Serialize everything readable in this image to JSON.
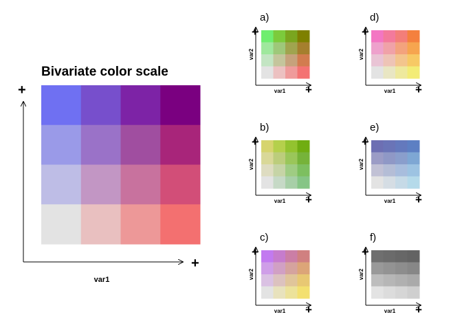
{
  "chart_data": {
    "type": "heatmap",
    "main": {
      "title": "Bivariate color scale",
      "xlabel": "var1",
      "ylabel": "",
      "x_end_marker": "+",
      "y_end_marker": "+",
      "grid": [
        [
          "#6f70f2",
          "#774fcc",
          "#7d23a6",
          "#7a0080"
        ],
        [
          "#9a9ae8",
          "#9a72c8",
          "#a04ea0",
          "#a8257a"
        ],
        [
          "#bebde6",
          "#c296c4",
          "#c8729e",
          "#d24e78"
        ],
        [
          "#e3e3e3",
          "#e9c0c0",
          "#ed9898",
          "#f37070"
        ]
      ]
    },
    "panels": [
      {
        "label": "a)",
        "xlabel": "var1",
        "ylabel": "var2",
        "x_end_marker": "+",
        "y_end_marker": "+",
        "grid": [
          [
            "#6fee6f",
            "#7ccb3c",
            "#7aa61f",
            "#7e8000"
          ],
          [
            "#9fe89d",
            "#9ec87a",
            "#a0a44f",
            "#a57f2e"
          ],
          [
            "#c3e5c3",
            "#c4c59c",
            "#c6a27c",
            "#d27c4f"
          ],
          [
            "#e3e3e3",
            "#ecc1c1",
            "#ef9b9b",
            "#f47373"
          ]
        ]
      },
      {
        "label": "b)",
        "xlabel": "var1",
        "ylabel": "var2",
        "x_end_marker": "+",
        "y_end_marker": "+",
        "grid": [
          [
            "#d6d46e",
            "#b5d04c",
            "#93c32f",
            "#70ad12"
          ],
          [
            "#d9d898",
            "#bccd7c",
            "#9ac65a",
            "#76b33a"
          ],
          [
            "#dedcc1",
            "#c6d4a6",
            "#9fcc83",
            "#7dbf60"
          ],
          [
            "#e3e3e3",
            "#c6d9c6",
            "#a7cfa7",
            "#86c586"
          ]
        ]
      },
      {
        "label": "c)",
        "xlabel": "var1",
        "ylabel": "var2",
        "x_end_marker": "+",
        "y_end_marker": "+",
        "grid": [
          [
            "#c27af0",
            "#c67ccd",
            "#cb7ea6",
            "#d08080"
          ],
          [
            "#cf9ee8",
            "#d1a0c4",
            "#d5a39e",
            "#dca578"
          ],
          [
            "#dac1e3",
            "#dcc2bf",
            "#e0c59a",
            "#e8c873"
          ],
          [
            "#e3e3e3",
            "#e8e2bd",
            "#ece29a",
            "#f3e070"
          ]
        ]
      },
      {
        "label": "d)",
        "xlabel": "var1",
        "ylabel": "var2",
        "x_end_marker": "+",
        "y_end_marker": "+",
        "grid": [
          [
            "#f376c3",
            "#f37a9c",
            "#f37e79",
            "#f4803e"
          ],
          [
            "#eea1cc",
            "#f0a2a8",
            "#f3a37d",
            "#f6a54f"
          ],
          [
            "#e9c4d5",
            "#eec4b6",
            "#f3c58d",
            "#f7c965"
          ],
          [
            "#e3e3e3",
            "#e9e6c3",
            "#eee99d",
            "#f3ec76"
          ]
        ]
      },
      {
        "label": "e)",
        "xlabel": "var1",
        "ylabel": "var2",
        "x_end_marker": "+",
        "y_end_marker": "+",
        "grid": [
          [
            "#6d6fb3",
            "#6a74b7",
            "#6479bd",
            "#5d7fc3"
          ],
          [
            "#9b9cc6",
            "#8f98c6",
            "#8a9ecc",
            "#7ea7d4"
          ],
          [
            "#c1c1d5",
            "#b4bdd6",
            "#a8bddd",
            "#9dc3e2"
          ],
          [
            "#e3e3e3",
            "#d5dde4",
            "#c6dae7",
            "#b5daea"
          ]
        ]
      },
      {
        "label": "f)",
        "xlabel": "var1",
        "ylabel": "var2",
        "x_end_marker": "+",
        "y_end_marker": "+",
        "grid": [
          [
            "#6f6f6f",
            "#6b6b6b",
            "#676767",
            "#636363"
          ],
          [
            "#999999",
            "#939393",
            "#8d8d8d",
            "#878787"
          ],
          [
            "#bdbdbd",
            "#b6b6b6",
            "#b0b0b0",
            "#aaaaaa"
          ],
          [
            "#e3e3e3",
            "#dcdcdc",
            "#d6d6d6",
            "#cfcfcf"
          ]
        ]
      }
    ]
  }
}
